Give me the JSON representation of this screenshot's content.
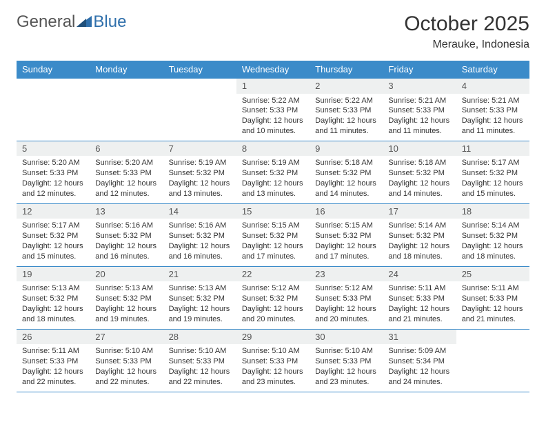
{
  "logo": {
    "text_left": "General",
    "text_right": "Blue"
  },
  "header": {
    "month_title": "October 2025",
    "location": "Merauke, Indonesia"
  },
  "colors": {
    "header_bg": "#3b8bc9",
    "header_text": "#ffffff",
    "daynum_bg": "#eef0f0",
    "border": "#3b8bc9",
    "logo_gray": "#555555",
    "logo_blue": "#2f6fab"
  },
  "daynames": [
    "Sunday",
    "Monday",
    "Tuesday",
    "Wednesday",
    "Thursday",
    "Friday",
    "Saturday"
  ],
  "weeks": [
    [
      {
        "n": "",
        "t": ""
      },
      {
        "n": "",
        "t": ""
      },
      {
        "n": "",
        "t": ""
      },
      {
        "n": "1",
        "t": "Sunrise: 5:22 AM\nSunset: 5:33 PM\nDaylight: 12 hours and 10 minutes."
      },
      {
        "n": "2",
        "t": "Sunrise: 5:22 AM\nSunset: 5:33 PM\nDaylight: 12 hours and 11 minutes."
      },
      {
        "n": "3",
        "t": "Sunrise: 5:21 AM\nSunset: 5:33 PM\nDaylight: 12 hours and 11 minutes."
      },
      {
        "n": "4",
        "t": "Sunrise: 5:21 AM\nSunset: 5:33 PM\nDaylight: 12 hours and 11 minutes."
      }
    ],
    [
      {
        "n": "5",
        "t": "Sunrise: 5:20 AM\nSunset: 5:33 PM\nDaylight: 12 hours and 12 minutes."
      },
      {
        "n": "6",
        "t": "Sunrise: 5:20 AM\nSunset: 5:33 PM\nDaylight: 12 hours and 12 minutes."
      },
      {
        "n": "7",
        "t": "Sunrise: 5:19 AM\nSunset: 5:32 PM\nDaylight: 12 hours and 13 minutes."
      },
      {
        "n": "8",
        "t": "Sunrise: 5:19 AM\nSunset: 5:32 PM\nDaylight: 12 hours and 13 minutes."
      },
      {
        "n": "9",
        "t": "Sunrise: 5:18 AM\nSunset: 5:32 PM\nDaylight: 12 hours and 14 minutes."
      },
      {
        "n": "10",
        "t": "Sunrise: 5:18 AM\nSunset: 5:32 PM\nDaylight: 12 hours and 14 minutes."
      },
      {
        "n": "11",
        "t": "Sunrise: 5:17 AM\nSunset: 5:32 PM\nDaylight: 12 hours and 15 minutes."
      }
    ],
    [
      {
        "n": "12",
        "t": "Sunrise: 5:17 AM\nSunset: 5:32 PM\nDaylight: 12 hours and 15 minutes."
      },
      {
        "n": "13",
        "t": "Sunrise: 5:16 AM\nSunset: 5:32 PM\nDaylight: 12 hours and 16 minutes."
      },
      {
        "n": "14",
        "t": "Sunrise: 5:16 AM\nSunset: 5:32 PM\nDaylight: 12 hours and 16 minutes."
      },
      {
        "n": "15",
        "t": "Sunrise: 5:15 AM\nSunset: 5:32 PM\nDaylight: 12 hours and 17 minutes."
      },
      {
        "n": "16",
        "t": "Sunrise: 5:15 AM\nSunset: 5:32 PM\nDaylight: 12 hours and 17 minutes."
      },
      {
        "n": "17",
        "t": "Sunrise: 5:14 AM\nSunset: 5:32 PM\nDaylight: 12 hours and 18 minutes."
      },
      {
        "n": "18",
        "t": "Sunrise: 5:14 AM\nSunset: 5:32 PM\nDaylight: 12 hours and 18 minutes."
      }
    ],
    [
      {
        "n": "19",
        "t": "Sunrise: 5:13 AM\nSunset: 5:32 PM\nDaylight: 12 hours and 18 minutes."
      },
      {
        "n": "20",
        "t": "Sunrise: 5:13 AM\nSunset: 5:32 PM\nDaylight: 12 hours and 19 minutes."
      },
      {
        "n": "21",
        "t": "Sunrise: 5:13 AM\nSunset: 5:32 PM\nDaylight: 12 hours and 19 minutes."
      },
      {
        "n": "22",
        "t": "Sunrise: 5:12 AM\nSunset: 5:32 PM\nDaylight: 12 hours and 20 minutes."
      },
      {
        "n": "23",
        "t": "Sunrise: 5:12 AM\nSunset: 5:33 PM\nDaylight: 12 hours and 20 minutes."
      },
      {
        "n": "24",
        "t": "Sunrise: 5:11 AM\nSunset: 5:33 PM\nDaylight: 12 hours and 21 minutes."
      },
      {
        "n": "25",
        "t": "Sunrise: 5:11 AM\nSunset: 5:33 PM\nDaylight: 12 hours and 21 minutes."
      }
    ],
    [
      {
        "n": "26",
        "t": "Sunrise: 5:11 AM\nSunset: 5:33 PM\nDaylight: 12 hours and 22 minutes."
      },
      {
        "n": "27",
        "t": "Sunrise: 5:10 AM\nSunset: 5:33 PM\nDaylight: 12 hours and 22 minutes."
      },
      {
        "n": "28",
        "t": "Sunrise: 5:10 AM\nSunset: 5:33 PM\nDaylight: 12 hours and 22 minutes."
      },
      {
        "n": "29",
        "t": "Sunrise: 5:10 AM\nSunset: 5:33 PM\nDaylight: 12 hours and 23 minutes."
      },
      {
        "n": "30",
        "t": "Sunrise: 5:10 AM\nSunset: 5:33 PM\nDaylight: 12 hours and 23 minutes."
      },
      {
        "n": "31",
        "t": "Sunrise: 5:09 AM\nSunset: 5:34 PM\nDaylight: 12 hours and 24 minutes."
      },
      {
        "n": "",
        "t": ""
      }
    ]
  ]
}
